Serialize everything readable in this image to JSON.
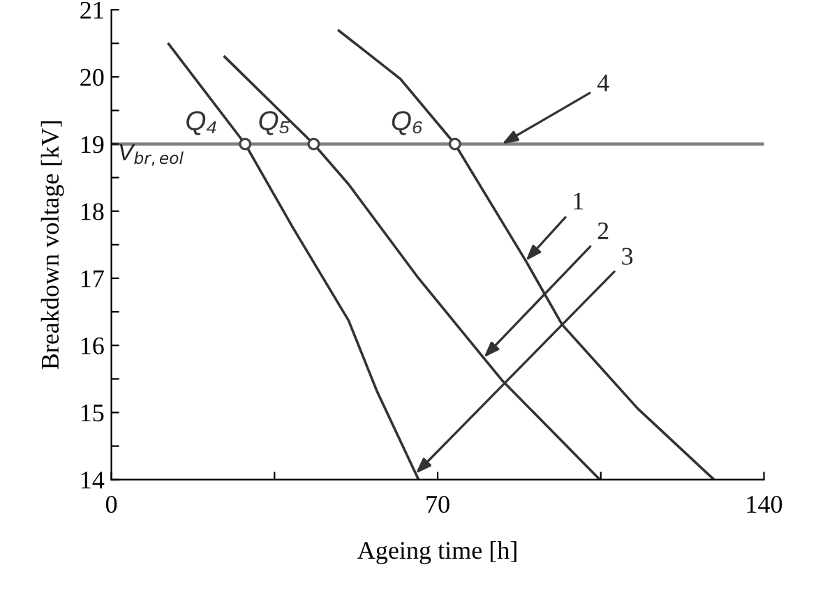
{
  "chart_data": {
    "type": "line",
    "xlabel": "Ageing time [h]",
    "ylabel": "Breakdown voltage [kV]",
    "xlim": [
      0,
      140
    ],
    "xticks": [
      0,
      {
        "value": 35,
        "label": null
      },
      70,
      {
        "value": 105,
        "label": null
      },
      140
    ],
    "ylim": [
      14,
      21
    ],
    "yticks": [
      14,
      {
        "value": 14.5,
        "label": null
      },
      15,
      {
        "value": 15.5,
        "label": null
      },
      16,
      {
        "value": 16.5,
        "label": null
      },
      17,
      {
        "value": 17.5,
        "label": null
      },
      18,
      {
        "value": 18.5,
        "label": null
      },
      19,
      {
        "value": 19.5,
        "label": null
      },
      20,
      {
        "value": 20.5,
        "label": null
      },
      21
    ],
    "grid": false,
    "legend": false,
    "series": [
      {
        "color": "#333333",
        "x": [
          48.8,
          62,
          73.7,
          88.9,
          96.7,
          112.9,
          129.3
        ],
        "values": [
          20.69,
          19.97,
          19,
          17.26,
          16.31,
          15.06,
          14
        ]
      },
      {
        "color": "#333333",
        "x": [
          24.3,
          43.4,
          50.9,
          65.9,
          83.8,
          104.8
        ],
        "values": [
          20.3,
          19,
          18.4,
          17.0,
          15.48,
          14
        ]
      },
      {
        "color": "#333333",
        "x": [
          12.3,
          28.7,
          38.9,
          50.9,
          56.9,
          65.9
        ],
        "values": [
          20.49,
          19,
          17.76,
          16.37,
          15.33,
          14
        ]
      },
      {
        "type": "scatter",
        "marker": "circle",
        "color": "#444444",
        "x": [
          28.7,
          43.4,
          73.7
        ],
        "values": [
          19,
          19,
          19
        ]
      }
    ],
    "ref_lines": [
      {
        "axis": "y",
        "value": 19,
        "label": "V$_{br,eol}$",
        "color": "#808080"
      }
    ],
    "annotations": [
      {
        "text": "Q₄",
        "x": 28.7,
        "y": 19
      },
      {
        "text": "Q₅",
        "x": 43.4,
        "y": 19
      },
      {
        "text": "Q₆",
        "x": 73.7,
        "y": 19
      },
      {
        "text": "1",
        "x": 88.9,
        "y": 17.26
      },
      {
        "text": "2",
        "x": 79.9,
        "y": 15.82
      },
      {
        "text": "3",
        "x": 65.3,
        "y": 14.09
      },
      {
        "text": "4",
        "x": 83.8,
        "y": 19
      }
    ]
  }
}
